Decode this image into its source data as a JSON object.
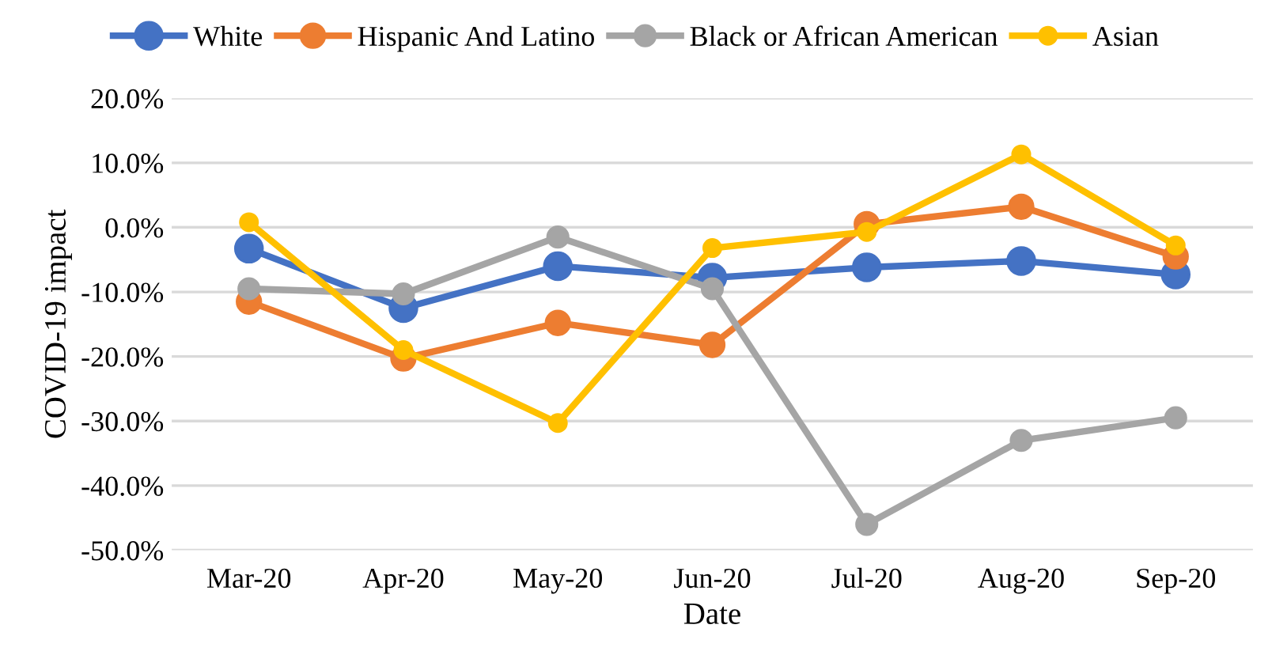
{
  "chart_data": {
    "type": "line",
    "xlabel": "Date",
    "ylabel": "COVID-19 impact",
    "categories": [
      "Mar-20",
      "Apr-20",
      "May-20",
      "Jun-20",
      "Jul-20",
      "Aug-20",
      "Sep-20"
    ],
    "series": [
      {
        "name": "White",
        "color": "#4472c4",
        "values": [
          -3.3,
          -12.5,
          -6.0,
          -7.8,
          -6.2,
          -5.2,
          -7.3
        ]
      },
      {
        "name": "Hispanic And Latino",
        "color": "#ed7d31",
        "values": [
          -11.5,
          -20.3,
          -14.8,
          -18.2,
          0.5,
          3.2,
          -4.5
        ]
      },
      {
        "name": "Black or African American",
        "color": "#a5a5a5",
        "values": [
          -9.5,
          -10.3,
          -1.5,
          -9.5,
          -46.0,
          -33.0,
          -29.5
        ]
      },
      {
        "name": "Asian",
        "color": "#ffc000",
        "values": [
          0.8,
          -19.0,
          -30.3,
          -3.2,
          -0.7,
          11.3,
          -2.8
        ]
      }
    ],
    "ylim": [
      -50,
      20
    ],
    "yticks": [
      {
        "value": -50,
        "label": "-50.0%"
      },
      {
        "value": -40,
        "label": "-40.0%"
      },
      {
        "value": -30,
        "label": "-30.0%"
      },
      {
        "value": -20,
        "label": "-20.0%"
      },
      {
        "value": -10,
        "label": "-10.0%"
      },
      {
        "value": 0,
        "label": "0.0%"
      },
      {
        "value": 10,
        "label": "10.0%"
      },
      {
        "value": 20,
        "label": "20.0%"
      }
    ],
    "grid": "y",
    "legend": "top",
    "marker": "circle",
    "line_style": "solid"
  }
}
